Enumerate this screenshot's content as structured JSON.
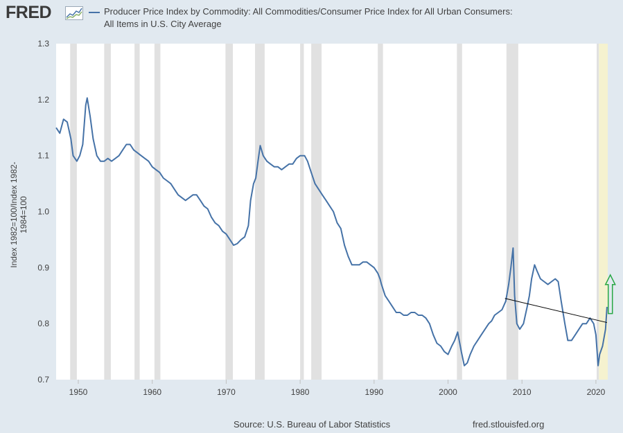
{
  "header": {
    "logo_text": "FRED",
    "legend_label_line1": "Producer Price Index by Commodity: All Commodities/Consumer Price Index for All Urban Consumers:",
    "legend_label_line2": "All Items in U.S. City Average"
  },
  "footer": {
    "source": "Source: U.S. Bureau of Labor Statistics",
    "url": "fred.stlouisfed.org"
  },
  "colors": {
    "series": "#4572a7",
    "recession": "#e1e1e1",
    "highlight": "#f5f2cf",
    "trendline": "#000000",
    "arrow": "#27a744"
  },
  "chart_data": {
    "type": "line",
    "ylabel": "Index 1982=100/Index 1982-1984=100",
    "xlim": [
      1947.0,
      2021.6
    ],
    "ylim": [
      0.7,
      1.3
    ],
    "yticks": [
      0.7,
      0.8,
      0.9,
      1.0,
      1.1,
      1.2,
      1.3
    ],
    "ytick_labels": [
      "0.7",
      "0.8",
      "0.9",
      "1.0",
      "1.1",
      "1.2",
      "1.3"
    ],
    "xticks": [
      1950,
      1960,
      1970,
      1980,
      1990,
      2000,
      2010,
      2020
    ],
    "xtick_labels": [
      "1950",
      "1960",
      "1970",
      "1980",
      "1990",
      "2000",
      "2010",
      "2020"
    ],
    "recessions": [
      [
        1948.9,
        1949.8
      ],
      [
        1953.5,
        1954.4
      ],
      [
        1957.6,
        1958.3
      ],
      [
        1960.3,
        1961.1
      ],
      [
        1969.9,
        1970.9
      ],
      [
        1973.9,
        1975.2
      ],
      [
        1980.0,
        1980.5
      ],
      [
        1981.5,
        1982.9
      ],
      [
        1990.5,
        1991.2
      ],
      [
        2001.2,
        2001.9
      ],
      [
        2007.9,
        2009.5
      ],
      [
        2020.1,
        2020.4
      ]
    ],
    "highlight_range": [
      2020.4,
      2021.6
    ],
    "series": [
      {
        "name": "Producer Price Index by Commodity: All Commodities/Consumer Price Index for All Urban Consumers: All Items in U.S. City Average",
        "x": [
          1947.0,
          1947.5,
          1948.0,
          1948.5,
          1949.0,
          1949.3,
          1949.8,
          1950.2,
          1950.6,
          1951.0,
          1951.2,
          1951.6,
          1952.0,
          1952.5,
          1953.0,
          1953.5,
          1954.0,
          1954.5,
          1955.0,
          1955.5,
          1956.0,
          1956.5,
          1957.0,
          1957.5,
          1958.0,
          1958.5,
          1959.0,
          1959.5,
          1960.0,
          1960.5,
          1961.0,
          1961.5,
          1962.0,
          1962.5,
          1963.0,
          1963.5,
          1964.0,
          1964.5,
          1965.0,
          1965.5,
          1966.0,
          1966.5,
          1967.0,
          1967.5,
          1968.0,
          1968.5,
          1969.0,
          1969.5,
          1970.0,
          1970.5,
          1971.0,
          1971.5,
          1972.0,
          1972.5,
          1973.0,
          1973.3,
          1973.7,
          1974.0,
          1974.3,
          1974.6,
          1975.0,
          1975.5,
          1976.0,
          1976.5,
          1977.0,
          1977.5,
          1978.0,
          1978.5,
          1979.0,
          1979.5,
          1980.0,
          1980.3,
          1980.6,
          1981.0,
          1981.5,
          1982.0,
          1982.5,
          1983.0,
          1983.5,
          1984.0,
          1984.5,
          1985.0,
          1985.5,
          1986.0,
          1986.5,
          1987.0,
          1987.5,
          1988.0,
          1988.5,
          1989.0,
          1989.5,
          1990.0,
          1990.5,
          1990.8,
          1991.0,
          1991.5,
          1992.0,
          1992.5,
          1993.0,
          1993.5,
          1994.0,
          1994.5,
          1995.0,
          1995.5,
          1996.0,
          1996.5,
          1997.0,
          1997.5,
          1998.0,
          1998.5,
          1999.0,
          1999.5,
          2000.0,
          2000.5,
          2000.9,
          2001.3,
          2001.8,
          2002.2,
          2002.6,
          2003.0,
          2003.5,
          2004.0,
          2004.5,
          2005.0,
          2005.5,
          2005.9,
          2006.3,
          2006.8,
          2007.3,
          2007.8,
          2008.2,
          2008.5,
          2008.8,
          2009.0,
          2009.3,
          2009.7,
          2010.2,
          2010.7,
          2011.0,
          2011.3,
          2011.7,
          2012.0,
          2012.5,
          2013.0,
          2013.5,
          2014.0,
          2014.5,
          2014.9,
          2015.3,
          2015.8,
          2016.2,
          2016.7,
          2017.2,
          2017.7,
          2018.2,
          2018.7,
          2019.2,
          2019.7,
          2020.0,
          2020.3,
          2020.5,
          2020.9,
          2021.3,
          2021.5
        ],
        "values": [
          1.15,
          1.14,
          1.165,
          1.16,
          1.13,
          1.1,
          1.09,
          1.1,
          1.12,
          1.19,
          1.203,
          1.17,
          1.13,
          1.1,
          1.09,
          1.09,
          1.095,
          1.09,
          1.095,
          1.1,
          1.11,
          1.12,
          1.12,
          1.11,
          1.105,
          1.1,
          1.095,
          1.09,
          1.08,
          1.075,
          1.07,
          1.06,
          1.055,
          1.05,
          1.04,
          1.03,
          1.025,
          1.02,
          1.025,
          1.03,
          1.03,
          1.02,
          1.01,
          1.005,
          0.99,
          0.98,
          0.975,
          0.965,
          0.96,
          0.95,
          0.94,
          0.943,
          0.95,
          0.955,
          0.975,
          1.02,
          1.05,
          1.06,
          1.09,
          1.118,
          1.1,
          1.09,
          1.085,
          1.08,
          1.08,
          1.075,
          1.08,
          1.085,
          1.085,
          1.095,
          1.1,
          1.1,
          1.1,
          1.09,
          1.07,
          1.05,
          1.04,
          1.03,
          1.02,
          1.01,
          1.0,
          0.98,
          0.97,
          0.94,
          0.92,
          0.905,
          0.905,
          0.905,
          0.91,
          0.91,
          0.905,
          0.9,
          0.89,
          0.88,
          0.87,
          0.85,
          0.84,
          0.83,
          0.82,
          0.82,
          0.815,
          0.815,
          0.82,
          0.82,
          0.815,
          0.815,
          0.81,
          0.8,
          0.78,
          0.765,
          0.76,
          0.75,
          0.745,
          0.76,
          0.77,
          0.785,
          0.75,
          0.725,
          0.73,
          0.745,
          0.76,
          0.77,
          0.78,
          0.79,
          0.8,
          0.805,
          0.815,
          0.82,
          0.825,
          0.84,
          0.87,
          0.9,
          0.935,
          0.85,
          0.8,
          0.79,
          0.8,
          0.83,
          0.85,
          0.88,
          0.905,
          0.895,
          0.88,
          0.875,
          0.87,
          0.875,
          0.88,
          0.875,
          0.84,
          0.8,
          0.77,
          0.77,
          0.78,
          0.79,
          0.8,
          0.8,
          0.81,
          0.8,
          0.78,
          0.725,
          0.745,
          0.76,
          0.79,
          0.83
        ]
      }
    ],
    "trendline": {
      "x": [
        2007.7,
        2021.5
      ],
      "y": [
        0.845,
        0.802
      ]
    },
    "annotation_arrow": {
      "x": 2021.95,
      "y_base": 0.818,
      "y_tip": 0.887
    }
  }
}
